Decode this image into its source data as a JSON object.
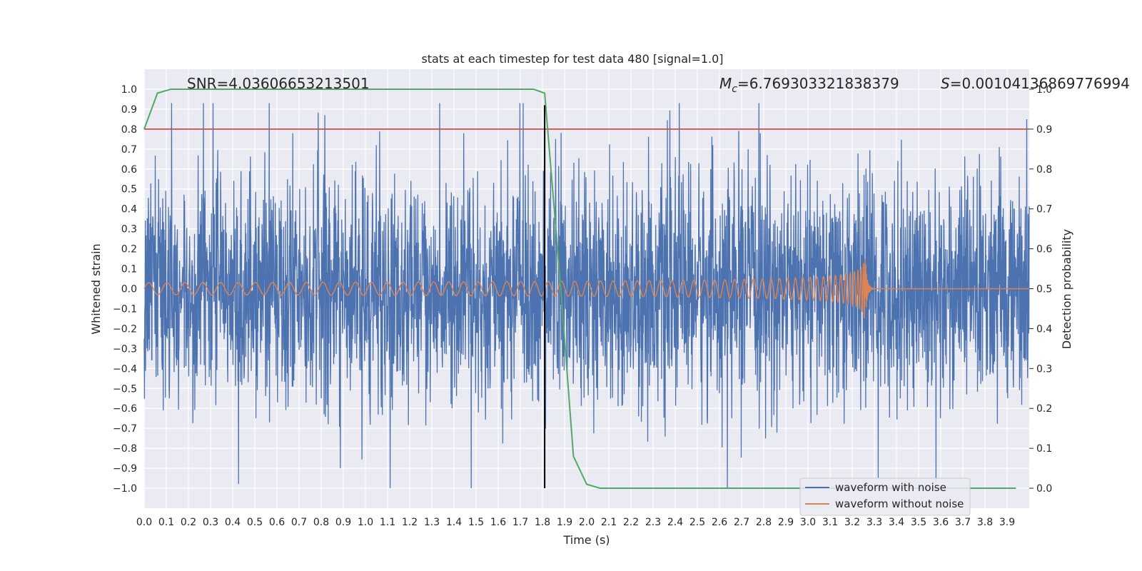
{
  "chart_data": {
    "type": "line",
    "title": "stats at each timestep for test data 480 [signal=1.0]",
    "xlabel": "Time (s)",
    "ylabel_left": "Whitened strain",
    "ylabel_right": "Detection probability",
    "xlim": [
      0.0,
      4.0
    ],
    "ylim_left": [
      -1.1,
      1.1
    ],
    "ylim_right": [
      -0.05,
      1.05
    ],
    "x_ticks": [
      "0.0",
      "0.1",
      "0.2",
      "0.3",
      "0.4",
      "0.5",
      "0.6",
      "0.7",
      "0.8",
      "0.9",
      "1.0",
      "1.1",
      "1.2",
      "1.3",
      "1.4",
      "1.5",
      "1.6",
      "1.7",
      "1.8",
      "1.9",
      "2.0",
      "2.1",
      "2.2",
      "2.3",
      "2.4",
      "2.5",
      "2.6",
      "2.7",
      "2.8",
      "2.9",
      "3.0",
      "3.1",
      "3.2",
      "3.3",
      "3.4",
      "3.5",
      "3.6",
      "3.7",
      "3.8",
      "3.9"
    ],
    "y_ticks_left": [
      "1.0",
      "0.9",
      "0.8",
      "0.7",
      "0.6",
      "0.5",
      "0.4",
      "0.3",
      "0.2",
      "0.1",
      "0.0",
      "−0.1",
      "−0.2",
      "−0.3",
      "−0.4",
      "−0.5",
      "−0.6",
      "−0.7",
      "−0.8",
      "−0.9",
      "−1.0"
    ],
    "y_ticks_right": [
      "1.0",
      "0.9",
      "0.8",
      "0.7",
      "0.6",
      "0.5",
      "0.4",
      "0.3",
      "0.2",
      "0.1",
      "0.0"
    ],
    "grid": true,
    "legend_position": "bottom-right",
    "annotations": {
      "snr": "SNR=4.03606653213501",
      "mc": "=6.769303321838379",
      "mc_symbol": "M",
      "mc_subscript": "c",
      "s": "=0.001041368697769​94",
      "s_symbol": "S"
    },
    "series": [
      {
        "name": "waveform with noise",
        "color": "#4c72b0",
        "axis": "left",
        "description_type": "noise",
        "x_range": [
          0.0,
          4.0
        ],
        "envelope": [
          0.75,
          0.95
        ]
      },
      {
        "name": "waveform without noise",
        "color": "#dd8452",
        "axis": "left",
        "description_type": "chirp",
        "x_range": [
          0.0,
          4.0
        ],
        "merger_time": 3.26,
        "amplitude_start": 0.03,
        "amplitude_peak": 0.15
      },
      {
        "color": "#55a868",
        "axis": "right",
        "x": [
          0.0,
          0.06,
          0.12,
          0.2,
          0.4,
          0.6,
          0.8,
          1.0,
          1.2,
          1.4,
          1.6,
          1.7,
          1.76,
          1.81,
          1.88,
          1.94,
          2.0,
          2.06,
          2.12,
          2.2,
          2.4,
          2.6,
          2.8,
          3.0,
          3.2,
          3.4,
          3.6,
          3.8,
          3.94
        ],
        "y": [
          0.9,
          0.99,
          1.0,
          1.0,
          1.0,
          1.0,
          1.0,
          1.0,
          1.0,
          1.0,
          1.0,
          1.0,
          1.0,
          0.99,
          0.52,
          0.08,
          0.01,
          0.0,
          0.0,
          0.0,
          0.0,
          0.0,
          0.0,
          0.0,
          0.0,
          0.0,
          0.0,
          0.0,
          0.0
        ]
      }
    ],
    "threshold_line": {
      "axis": "right",
      "y": 0.9,
      "color": "#c44e52"
    },
    "vertical_line": {
      "x": 1.81,
      "color": "#000000",
      "y_from": -1.0,
      "y_to": 0.92
    }
  },
  "legend": {
    "items": [
      {
        "label": "waveform with noise",
        "color": "#4c72b0"
      },
      {
        "label": "waveform without noise",
        "color": "#dd8452"
      }
    ]
  },
  "colors": {
    "plot_background": "#eaeaf2",
    "grid": "#ffffff"
  }
}
